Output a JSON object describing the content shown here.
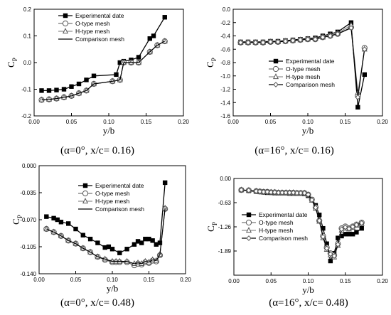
{
  "chart_data": [
    {
      "type": "line",
      "caption": "(α=0°, x/c= 0.16)",
      "xlabel": "y/b",
      "ylabel": "C",
      "ylabel_sub": "P",
      "xlim": [
        0.0,
        0.2
      ],
      "ylim": [
        -0.2,
        0.2
      ],
      "xticks": [
        "0.00",
        "0.05",
        "0.10",
        "0.15",
        "0.20"
      ],
      "yticks": [
        "-0.2",
        "-0.1",
        "0.0",
        "0.1",
        "0.2"
      ],
      "xtick_values": [
        0.0,
        0.05,
        0.1,
        0.15,
        0.2
      ],
      "ytick_values": [
        -0.2,
        -0.1,
        0.0,
        0.1,
        0.2
      ],
      "legend_position": "top-left",
      "series": [
        {
          "name": "Experimental date",
          "marker": "square",
          "x": [
            0.01,
            0.02,
            0.03,
            0.04,
            0.05,
            0.06,
            0.07,
            0.08,
            0.11,
            0.115,
            0.12,
            0.13,
            0.14,
            0.155,
            0.16,
            0.175
          ],
          "y": [
            -0.105,
            -0.105,
            -0.103,
            -0.1,
            -0.09,
            -0.08,
            -0.065,
            -0.05,
            -0.045,
            0.0,
            0.005,
            0.01,
            0.02,
            0.09,
            0.1,
            0.17
          ]
        },
        {
          "name": "O-type mesh",
          "marker": "circle",
          "x": [
            0.01,
            0.02,
            0.03,
            0.04,
            0.05,
            0.06,
            0.07,
            0.08,
            0.105,
            0.115,
            0.12,
            0.13,
            0.14,
            0.155,
            0.165,
            0.175
          ],
          "y": [
            -0.14,
            -0.138,
            -0.135,
            -0.13,
            -0.125,
            -0.115,
            -0.105,
            -0.08,
            -0.07,
            -0.065,
            0.0,
            0.0,
            0.0,
            0.04,
            0.065,
            0.08
          ]
        },
        {
          "name": "H-type mesh",
          "marker": "triangle",
          "x": [
            0.01,
            0.02,
            0.03,
            0.04,
            0.05,
            0.06,
            0.07,
            0.08,
            0.105,
            0.115,
            0.12,
            0.13,
            0.14,
            0.155,
            0.165,
            0.175
          ],
          "y": [
            -0.14,
            -0.138,
            -0.135,
            -0.13,
            -0.125,
            -0.115,
            -0.105,
            -0.08,
            -0.07,
            -0.065,
            0.0,
            0.0,
            0.0,
            0.04,
            0.065,
            0.08
          ]
        },
        {
          "name": "Comparison mesh",
          "marker": "none",
          "x": [
            0.01,
            0.02,
            0.03,
            0.04,
            0.05,
            0.06,
            0.07,
            0.08,
            0.105,
            0.115,
            0.12,
            0.13,
            0.14,
            0.155,
            0.165,
            0.175
          ],
          "y": [
            -0.14,
            -0.138,
            -0.135,
            -0.13,
            -0.125,
            -0.115,
            -0.105,
            -0.08,
            -0.07,
            -0.065,
            0.0,
            0.0,
            0.0,
            0.04,
            0.065,
            0.08
          ]
        }
      ]
    },
    {
      "type": "line",
      "caption": "(α=16°, x/c= 0.16)",
      "xlabel": "y/b",
      "ylabel": "C",
      "ylabel_sub": "P",
      "xlim": [
        0.0,
        0.2
      ],
      "ylim": [
        -1.6,
        0.0
      ],
      "xticks": [
        "0.00",
        "0.05",
        "0.10",
        "0.15",
        "0.20"
      ],
      "yticks": [
        "-1.6",
        "-1.4",
        "-1.2",
        "-1.0",
        "-0.8",
        "-0.6",
        "-0.4",
        "-0.2",
        "0.0"
      ],
      "xtick_values": [
        0.0,
        0.05,
        0.1,
        0.15,
        0.2
      ],
      "ytick_values": [
        -1.6,
        -1.4,
        -1.2,
        -1.0,
        -0.8,
        -0.6,
        -0.4,
        -0.2,
        0.0
      ],
      "legend_position": "bottom-right",
      "series": [
        {
          "name": "Experimental date",
          "marker": "square",
          "x": [
            0.01,
            0.02,
            0.03,
            0.04,
            0.05,
            0.06,
            0.07,
            0.08,
            0.09,
            0.1,
            0.11,
            0.12,
            0.13,
            0.14,
            0.158,
            0.167,
            0.176
          ],
          "y": [
            -0.49,
            -0.49,
            -0.49,
            -0.49,
            -0.48,
            -0.48,
            -0.47,
            -0.46,
            -0.45,
            -0.44,
            -0.43,
            -0.4,
            -0.37,
            -0.34,
            -0.2,
            -1.47,
            -0.98
          ]
        },
        {
          "name": "O-type mesh",
          "marker": "circle",
          "x": [
            0.01,
            0.02,
            0.03,
            0.04,
            0.05,
            0.06,
            0.07,
            0.08,
            0.09,
            0.1,
            0.11,
            0.12,
            0.13,
            0.14,
            0.158,
            0.167,
            0.176
          ],
          "y": [
            -0.5,
            -0.5,
            -0.5,
            -0.5,
            -0.49,
            -0.49,
            -0.48,
            -0.47,
            -0.46,
            -0.45,
            -0.45,
            -0.42,
            -0.4,
            -0.37,
            -0.27,
            -1.3,
            -0.58
          ]
        },
        {
          "name": "H-type mesh",
          "marker": "triangle",
          "x": [
            0.01,
            0.02,
            0.03,
            0.04,
            0.05,
            0.06,
            0.07,
            0.08,
            0.09,
            0.1,
            0.11,
            0.12,
            0.13,
            0.14,
            0.158,
            0.167,
            0.176
          ],
          "y": [
            -0.5,
            -0.5,
            -0.5,
            -0.5,
            -0.49,
            -0.49,
            -0.48,
            -0.47,
            -0.46,
            -0.45,
            -0.44,
            -0.42,
            -0.39,
            -0.36,
            -0.24,
            -1.25,
            -0.6
          ]
        },
        {
          "name": "Comparison mesh",
          "marker": "diamond",
          "x": [
            0.01,
            0.02,
            0.03,
            0.04,
            0.05,
            0.06,
            0.07,
            0.08,
            0.09,
            0.1,
            0.11,
            0.12,
            0.13,
            0.14,
            0.158,
            0.167,
            0.176
          ],
          "y": [
            -0.5,
            -0.5,
            -0.5,
            -0.5,
            -0.49,
            -0.49,
            -0.48,
            -0.47,
            -0.46,
            -0.45,
            -0.45,
            -0.42,
            -0.4,
            -0.37,
            -0.28,
            -1.32,
            -0.6
          ]
        }
      ]
    },
    {
      "type": "line",
      "caption": "(α=0°, x/c= 0.48)",
      "xlabel": "y/b",
      "ylabel": "C",
      "ylabel_sub": "P",
      "xlim": [
        0.0,
        0.2
      ],
      "ylim": [
        -0.14,
        0.0
      ],
      "xticks": [
        "0.00",
        "0.05",
        "0.10",
        "0.15",
        "0.20"
      ],
      "yticks": [
        "-0.140",
        "-0.105",
        "-0.070",
        "-0.035",
        "0.000"
      ],
      "xtick_values": [
        0.0,
        0.05,
        0.1,
        0.15,
        0.2
      ],
      "ytick_values": [
        -0.14,
        -0.105,
        -0.07,
        -0.035,
        0.0
      ],
      "legend_position": "top-right",
      "series": [
        {
          "name": "Experimental date",
          "marker": "square",
          "x": [
            0.01,
            0.02,
            0.025,
            0.03,
            0.04,
            0.05,
            0.06,
            0.07,
            0.08,
            0.09,
            0.095,
            0.1,
            0.11,
            0.12,
            0.13,
            0.135,
            0.14,
            0.145,
            0.15,
            0.155,
            0.16,
            0.165,
            0.172
          ],
          "y": [
            -0.066,
            -0.068,
            -0.07,
            -0.073,
            -0.075,
            -0.082,
            -0.09,
            -0.095,
            -0.1,
            -0.106,
            -0.105,
            -0.108,
            -0.113,
            -0.108,
            -0.102,
            -0.098,
            -0.1,
            -0.095,
            -0.095,
            -0.097,
            -0.102,
            -0.1,
            -0.022
          ]
        },
        {
          "name": "O-type mesh",
          "marker": "circle",
          "x": [
            0.01,
            0.02,
            0.03,
            0.04,
            0.05,
            0.06,
            0.07,
            0.08,
            0.09,
            0.1,
            0.105,
            0.11,
            0.12,
            0.13,
            0.135,
            0.14,
            0.145,
            0.15,
            0.155,
            0.16,
            0.165,
            0.172
          ],
          "y": [
            -0.082,
            -0.086,
            -0.091,
            -0.097,
            -0.101,
            -0.107,
            -0.112,
            -0.118,
            -0.122,
            -0.125,
            -0.125,
            -0.125,
            -0.125,
            -0.129,
            -0.127,
            -0.128,
            -0.125,
            -0.126,
            -0.123,
            -0.124,
            -0.116,
            -0.056
          ]
        },
        {
          "name": "H-type mesh",
          "marker": "triangle",
          "x": [
            0.01,
            0.02,
            0.03,
            0.04,
            0.05,
            0.06,
            0.07,
            0.08,
            0.09,
            0.1,
            0.105,
            0.11,
            0.12,
            0.13,
            0.135,
            0.14,
            0.145,
            0.15,
            0.155,
            0.16,
            0.165,
            0.172
          ],
          "y": [
            -0.082,
            -0.086,
            -0.091,
            -0.097,
            -0.101,
            -0.107,
            -0.112,
            -0.118,
            -0.121,
            -0.124,
            -0.124,
            -0.124,
            -0.124,
            -0.127,
            -0.126,
            -0.127,
            -0.124,
            -0.125,
            -0.122,
            -0.123,
            -0.115,
            -0.055
          ]
        },
        {
          "name": "Comparison mesh",
          "marker": "none",
          "x": [
            0.01,
            0.02,
            0.03,
            0.04,
            0.05,
            0.06,
            0.07,
            0.08,
            0.09,
            0.1,
            0.105,
            0.11,
            0.12,
            0.13,
            0.135,
            0.14,
            0.145,
            0.15,
            0.155,
            0.16,
            0.165,
            0.172
          ],
          "y": [
            -0.082,
            -0.086,
            -0.091,
            -0.097,
            -0.101,
            -0.107,
            -0.112,
            -0.118,
            -0.121,
            -0.124,
            -0.124,
            -0.124,
            -0.124,
            -0.127,
            -0.126,
            -0.127,
            -0.124,
            -0.125,
            -0.122,
            -0.123,
            -0.115,
            -0.055
          ]
        }
      ]
    },
    {
      "type": "line",
      "caption": "(α=16°, x/c= 0.48)",
      "xlabel": "y/b",
      "ylabel": "C",
      "ylabel_sub": "P",
      "xlim": [
        0.0,
        0.2
      ],
      "ylim": [
        -2.52,
        0.0
      ],
      "xticks": [
        "0.00",
        "0.05",
        "0.10",
        "0.15",
        "0.20"
      ],
      "yticks": [
        "-1.89",
        "-1.26",
        "-0.63",
        "0.00"
      ],
      "xtick_values": [
        0.0,
        0.05,
        0.1,
        0.15,
        0.2
      ],
      "ytick_values": [
        -1.89,
        -1.26,
        -0.63,
        0.0
      ],
      "legend_position": "bottom-left",
      "series": [
        {
          "name": "Experimental date",
          "marker": "square",
          "x": [
            0.01,
            0.02,
            0.03,
            0.035,
            0.04,
            0.045,
            0.05,
            0.055,
            0.06,
            0.065,
            0.07,
            0.075,
            0.08,
            0.085,
            0.09,
            0.095,
            0.1,
            0.105,
            0.11,
            0.115,
            0.12,
            0.125,
            0.13,
            0.135,
            0.14,
            0.145,
            0.15,
            0.155,
            0.16,
            0.165,
            0.172
          ],
          "y": [
            -0.3,
            -0.32,
            -0.34,
            -0.35,
            -0.36,
            -0.37,
            -0.37,
            -0.38,
            -0.38,
            -0.38,
            -0.38,
            -0.39,
            -0.39,
            -0.39,
            -0.39,
            -0.4,
            -0.45,
            -0.55,
            -0.7,
            -0.95,
            -1.3,
            -1.7,
            -2.15,
            -1.95,
            -1.55,
            -1.5,
            -1.45,
            -1.45,
            -1.45,
            -1.4,
            -1.3
          ]
        },
        {
          "name": "O-type mesh",
          "marker": "circle",
          "x": [
            0.01,
            0.02,
            0.03,
            0.035,
            0.04,
            0.045,
            0.05,
            0.055,
            0.06,
            0.065,
            0.07,
            0.075,
            0.08,
            0.085,
            0.09,
            0.095,
            0.1,
            0.105,
            0.11,
            0.115,
            0.12,
            0.125,
            0.13,
            0.135,
            0.14,
            0.145,
            0.15,
            0.155,
            0.16,
            0.165,
            0.172
          ],
          "y": [
            -0.3,
            -0.31,
            -0.33,
            -0.34,
            -0.35,
            -0.35,
            -0.36,
            -0.36,
            -0.37,
            -0.37,
            -0.37,
            -0.37,
            -0.37,
            -0.38,
            -0.38,
            -0.38,
            -0.42,
            -0.55,
            -0.75,
            -1.1,
            -1.5,
            -1.8,
            -1.95,
            -2.0,
            -1.7,
            -1.3,
            -1.25,
            -1.3,
            -1.25,
            -1.2,
            -1.15
          ]
        },
        {
          "name": "H-type mesh",
          "marker": "triangle",
          "x": [
            0.01,
            0.02,
            0.03,
            0.035,
            0.04,
            0.045,
            0.05,
            0.055,
            0.06,
            0.065,
            0.07,
            0.075,
            0.08,
            0.085,
            0.09,
            0.095,
            0.1,
            0.105,
            0.11,
            0.115,
            0.12,
            0.125,
            0.13,
            0.135,
            0.14,
            0.145,
            0.15,
            0.155,
            0.16,
            0.165,
            0.172
          ],
          "y": [
            -0.3,
            -0.31,
            -0.33,
            -0.34,
            -0.35,
            -0.35,
            -0.36,
            -0.36,
            -0.37,
            -0.37,
            -0.37,
            -0.37,
            -0.37,
            -0.38,
            -0.38,
            -0.38,
            -0.43,
            -0.57,
            -0.78,
            -1.12,
            -1.55,
            -1.85,
            -2.0,
            -2.05,
            -1.75,
            -1.35,
            -1.3,
            -1.32,
            -1.28,
            -1.22,
            -1.18
          ]
        },
        {
          "name": "Comparison mesh",
          "marker": "diamond",
          "x": [
            0.01,
            0.02,
            0.03,
            0.035,
            0.04,
            0.045,
            0.05,
            0.055,
            0.06,
            0.065,
            0.07,
            0.075,
            0.08,
            0.085,
            0.09,
            0.095,
            0.1,
            0.105,
            0.11,
            0.115,
            0.12,
            0.125,
            0.13,
            0.135,
            0.14,
            0.145,
            0.15,
            0.155,
            0.16,
            0.165,
            0.172
          ],
          "y": [
            -0.3,
            -0.31,
            -0.33,
            -0.34,
            -0.35,
            -0.35,
            -0.36,
            -0.36,
            -0.37,
            -0.37,
            -0.37,
            -0.37,
            -0.37,
            -0.38,
            -0.38,
            -0.38,
            -0.42,
            -0.56,
            -0.76,
            -1.1,
            -1.52,
            -1.82,
            -1.97,
            -2.02,
            -1.72,
            -1.32,
            -1.27,
            -1.31,
            -1.26,
            -1.21,
            -1.16
          ]
        }
      ]
    }
  ]
}
